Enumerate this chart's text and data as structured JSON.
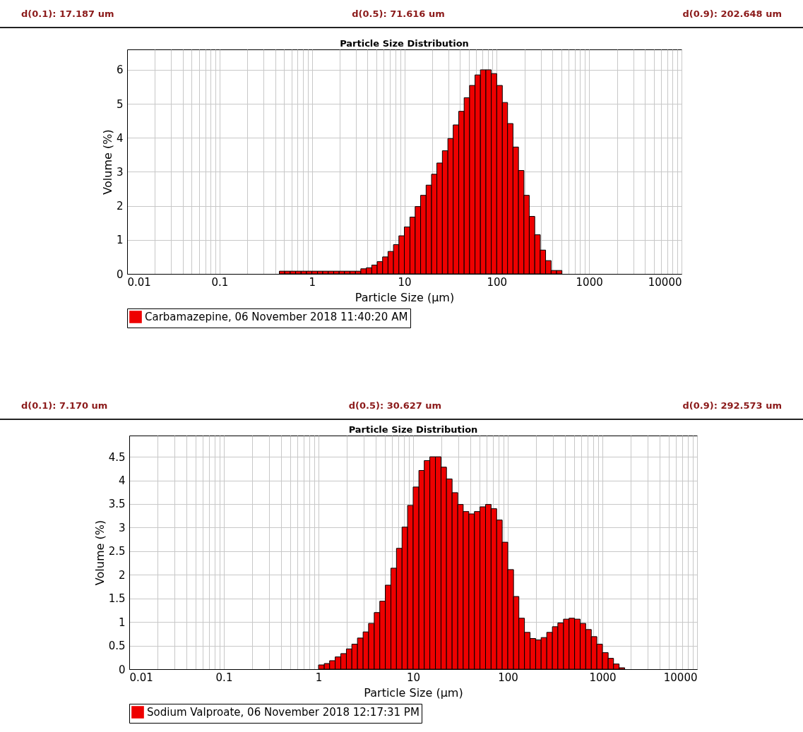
{
  "chart_data": [
    {
      "type": "histogram",
      "title": "Particle Size Distribution",
      "xlabel": "Particle Size (µm)",
      "ylabel": "Volume (%)",
      "annotations": [
        "d(0.1): 17.187 um",
        "d(0.5): 71.616 um",
        "d(0.9): 202.648 um"
      ],
      "bins": [
        0.444,
        0.508,
        0.582,
        0.666,
        0.763,
        0.873,
        1,
        1.15,
        1.31,
        1.5,
        1.72,
        1.97,
        2.25,
        2.58,
        2.96,
        3.38,
        3.88,
        4.44,
        5.08,
        5.82,
        6.66,
        7.63,
        8.73,
        10,
        11.5,
        13.1,
        15,
        17.2,
        19.7,
        22.5,
        25.8,
        29.6,
        33.8,
        38.8,
        44.4,
        50.8,
        58.2,
        66.6,
        76.3,
        87.3,
        100,
        115,
        131,
        150,
        172,
        197,
        225,
        258,
        296,
        338,
        388,
        444,
        508
      ],
      "series": [
        {
          "name": "Carbamazepine, 06 November 2018 11:40:20 AM",
          "color": "#ee0000",
          "values": [
            0.08,
            0.08,
            0.08,
            0.08,
            0.08,
            0.08,
            0.08,
            0.08,
            0.08,
            0.08,
            0.08,
            0.08,
            0.08,
            0.08,
            0.08,
            0.15,
            0.18,
            0.26,
            0.36,
            0.5,
            0.66,
            0.86,
            1.12,
            1.38,
            1.67,
            1.98,
            2.31,
            2.61,
            2.93,
            3.26,
            3.62,
            3.98,
            4.38,
            4.78,
            5.18,
            5.54,
            5.85,
            6.0,
            6.0,
            5.89,
            5.54,
            5.04,
            4.42,
            3.73,
            3.04,
            2.31,
            1.69,
            1.15,
            0.7,
            0.39,
            0.1,
            0.1
          ]
        }
      ],
      "xlim": [
        0.01,
        10000
      ],
      "ylim": [
        0,
        6.6
      ],
      "log": "x",
      "grid": true,
      "legend": "bottom",
      "xticks": [
        0.01,
        {
          "value": 0.02,
          "label": null
        },
        {
          "value": 0.03,
          "label": null
        },
        {
          "value": 0.04,
          "label": null
        },
        {
          "value": 0.05,
          "label": null
        },
        {
          "value": 0.06,
          "label": null
        },
        {
          "value": 0.07,
          "label": null
        },
        {
          "value": 0.08,
          "label": null
        },
        {
          "value": 0.09,
          "label": null
        },
        0.1,
        {
          "value": 0.2,
          "label": null
        },
        {
          "value": 0.3,
          "label": null
        },
        {
          "value": 0.4,
          "label": null
        },
        {
          "value": 0.5,
          "label": null
        },
        {
          "value": 0.6,
          "label": null
        },
        {
          "value": 0.7,
          "label": null
        },
        {
          "value": 0.8,
          "label": null
        },
        {
          "value": 0.9,
          "label": null
        },
        1,
        {
          "value": 2,
          "label": null
        },
        {
          "value": 3,
          "label": null
        },
        {
          "value": 4,
          "label": null
        },
        {
          "value": 5,
          "label": null
        },
        {
          "value": 6,
          "label": null
        },
        {
          "value": 7,
          "label": null
        },
        {
          "value": 8,
          "label": null
        },
        {
          "value": 9,
          "label": null
        },
        10,
        {
          "value": 20,
          "label": null
        },
        {
          "value": 30,
          "label": null
        },
        {
          "value": 40,
          "label": null
        },
        {
          "value": 50,
          "label": null
        },
        {
          "value": 60,
          "label": null
        },
        {
          "value": 70,
          "label": null
        },
        {
          "value": 80,
          "label": null
        },
        {
          "value": 90,
          "label": null
        },
        100,
        {
          "value": 200,
          "label": null
        },
        {
          "value": 300,
          "label": null
        },
        {
          "value": 400,
          "label": null
        },
        {
          "value": 500,
          "label": null
        },
        {
          "value": 600,
          "label": null
        },
        {
          "value": 700,
          "label": null
        },
        {
          "value": 800,
          "label": null
        },
        {
          "value": 900,
          "label": null
        },
        1000,
        {
          "value": 2000,
          "label": null
        },
        {
          "value": 3000,
          "label": null
        },
        {
          "value": 4000,
          "label": null
        },
        {
          "value": 5000,
          "label": null
        },
        {
          "value": 6000,
          "label": null
        },
        {
          "value": 7000,
          "label": null
        },
        {
          "value": 8000,
          "label": null
        },
        {
          "value": 9000,
          "label": null
        },
        10000
      ],
      "yticks": [
        0,
        1,
        2,
        3,
        4,
        5,
        6
      ]
    },
    {
      "type": "histogram",
      "title": "Particle Size Distribution",
      "xlabel": "Particle Size (µm)",
      "ylabel": "Volume (%)",
      "annotations": [
        "d(0.1): 7.170 um",
        "d(0.5): 30.627 um",
        "d(0.9): 292.573 um"
      ],
      "bins": [
        1,
        1.15,
        1.31,
        1.5,
        1.72,
        1.97,
        2.25,
        2.58,
        2.96,
        3.38,
        3.88,
        4.44,
        5.08,
        5.82,
        6.66,
        7.63,
        8.73,
        10,
        11.5,
        13.1,
        15,
        17.2,
        19.7,
        22.5,
        25.8,
        29.6,
        33.8,
        38.8,
        44.4,
        50.8,
        58.2,
        66.6,
        76.3,
        87.3,
        100,
        115,
        131,
        150,
        172,
        197,
        225,
        258,
        296,
        338,
        388,
        444,
        508,
        582,
        666,
        763,
        873,
        1000,
        1150,
        1310,
        1500,
        1720
      ],
      "series": [
        {
          "name": "Sodium Valproate, 06 November 2018 12:17:31 PM",
          "color": "#ee0000",
          "values": [
            0.09,
            0.12,
            0.18,
            0.26,
            0.33,
            0.43,
            0.53,
            0.66,
            0.79,
            0.97,
            1.2,
            1.44,
            1.78,
            2.14,
            2.56,
            3.01,
            3.47,
            3.86,
            4.21,
            4.42,
            4.5,
            4.5,
            4.28,
            4.03,
            3.74,
            3.49,
            3.34,
            3.29,
            3.34,
            3.44,
            3.49,
            3.4,
            3.16,
            2.69,
            2.11,
            1.54,
            1.08,
            0.78,
            0.65,
            0.62,
            0.67,
            0.78,
            0.9,
            0.98,
            1.06,
            1.08,
            1.06,
            0.97,
            0.84,
            0.69,
            0.53,
            0.35,
            0.23,
            0.11,
            0.03
          ]
        }
      ],
      "xlim": [
        0.01,
        10000
      ],
      "ylim": [
        0,
        4.95
      ],
      "log": "x",
      "grid": true,
      "legend": "bottom",
      "xticks": [
        0.01,
        {
          "value": 0.02,
          "label": null
        },
        {
          "value": 0.03,
          "label": null
        },
        {
          "value": 0.04,
          "label": null
        },
        {
          "value": 0.05,
          "label": null
        },
        {
          "value": 0.06,
          "label": null
        },
        {
          "value": 0.07,
          "label": null
        },
        {
          "value": 0.08,
          "label": null
        },
        {
          "value": 0.09,
          "label": null
        },
        0.1,
        {
          "value": 0.2,
          "label": null
        },
        {
          "value": 0.3,
          "label": null
        },
        {
          "value": 0.4,
          "label": null
        },
        {
          "value": 0.5,
          "label": null
        },
        {
          "value": 0.6,
          "label": null
        },
        {
          "value": 0.7,
          "label": null
        },
        {
          "value": 0.8,
          "label": null
        },
        {
          "value": 0.9,
          "label": null
        },
        1,
        {
          "value": 2,
          "label": null
        },
        {
          "value": 3,
          "label": null
        },
        {
          "value": 4,
          "label": null
        },
        {
          "value": 5,
          "label": null
        },
        {
          "value": 6,
          "label": null
        },
        {
          "value": 7,
          "label": null
        },
        {
          "value": 8,
          "label": null
        },
        {
          "value": 9,
          "label": null
        },
        10,
        {
          "value": 20,
          "label": null
        },
        {
          "value": 30,
          "label": null
        },
        {
          "value": 40,
          "label": null
        },
        {
          "value": 50,
          "label": null
        },
        {
          "value": 60,
          "label": null
        },
        {
          "value": 70,
          "label": null
        },
        {
          "value": 80,
          "label": null
        },
        {
          "value": 90,
          "label": null
        },
        100,
        {
          "value": 200,
          "label": null
        },
        {
          "value": 300,
          "label": null
        },
        {
          "value": 400,
          "label": null
        },
        {
          "value": 500,
          "label": null
        },
        {
          "value": 600,
          "label": null
        },
        {
          "value": 700,
          "label": null
        },
        {
          "value": 800,
          "label": null
        },
        {
          "value": 900,
          "label": null
        },
        1000,
        {
          "value": 2000,
          "label": null
        },
        {
          "value": 3000,
          "label": null
        },
        {
          "value": 4000,
          "label": null
        },
        {
          "value": 5000,
          "label": null
        },
        {
          "value": 6000,
          "label": null
        },
        {
          "value": 7000,
          "label": null
        },
        {
          "value": 8000,
          "label": null
        },
        {
          "value": 9000,
          "label": null
        },
        10000
      ],
      "yticks": [
        0,
        0.5,
        1,
        1.5,
        2,
        2.5,
        3,
        3.5,
        4,
        4.5
      ]
    }
  ]
}
